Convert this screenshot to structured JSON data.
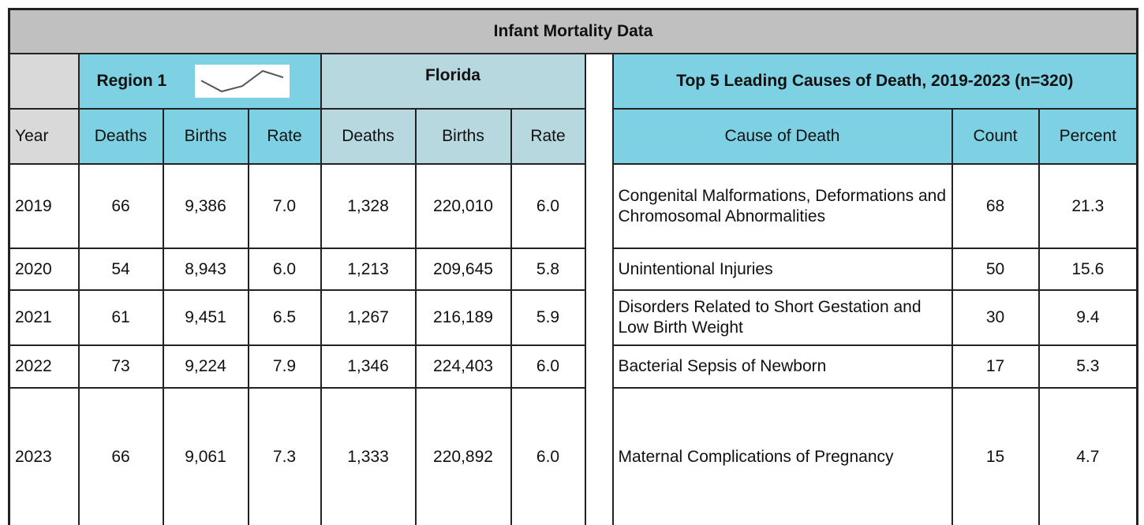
{
  "title": "Infant Mortality Data",
  "region_header": "Region 1",
  "florida_header": "Florida",
  "causes_header": "Top 5 Leading Causes of Death, 2019-2023 (n=320)",
  "columns": [
    "Year",
    "Deaths",
    "Births",
    "Rate",
    "Deaths",
    "Births",
    "Rate"
  ],
  "cause_columns": [
    "Cause of Death",
    "Count",
    "Percent"
  ],
  "rows": [
    [
      "2019",
      "66",
      "9,386",
      "7.0",
      "1,328",
      "220,010",
      "6.0"
    ],
    [
      "2020",
      "54",
      "8,943",
      "6.0",
      "1,213",
      "209,645",
      "5.8"
    ],
    [
      "2021",
      "61",
      "9,451",
      "6.5",
      "1,267",
      "216,189",
      "5.9"
    ],
    [
      "2022",
      "73",
      "9,224",
      "7.9",
      "1,346",
      "224,403",
      "6.0"
    ],
    [
      "2023",
      "66",
      "9,061",
      "7.3",
      "1,333",
      "220,892",
      "6.0"
    ]
  ],
  "causes": [
    [
      "Congenital Malformations, Deformations and Chromosomal Abnormalities",
      "68",
      "21.3"
    ],
    [
      "Unintentional Injuries",
      "50",
      "15.6"
    ],
    [
      "Disorders Related to Short Gestation and Low Birth Weight",
      "30",
      "9.4"
    ],
    [
      "Bacterial Sepsis of Newborn",
      "17",
      "5.3"
    ],
    [
      "Maternal Complications of Pregnancy",
      "15",
      "4.7"
    ]
  ]
}
